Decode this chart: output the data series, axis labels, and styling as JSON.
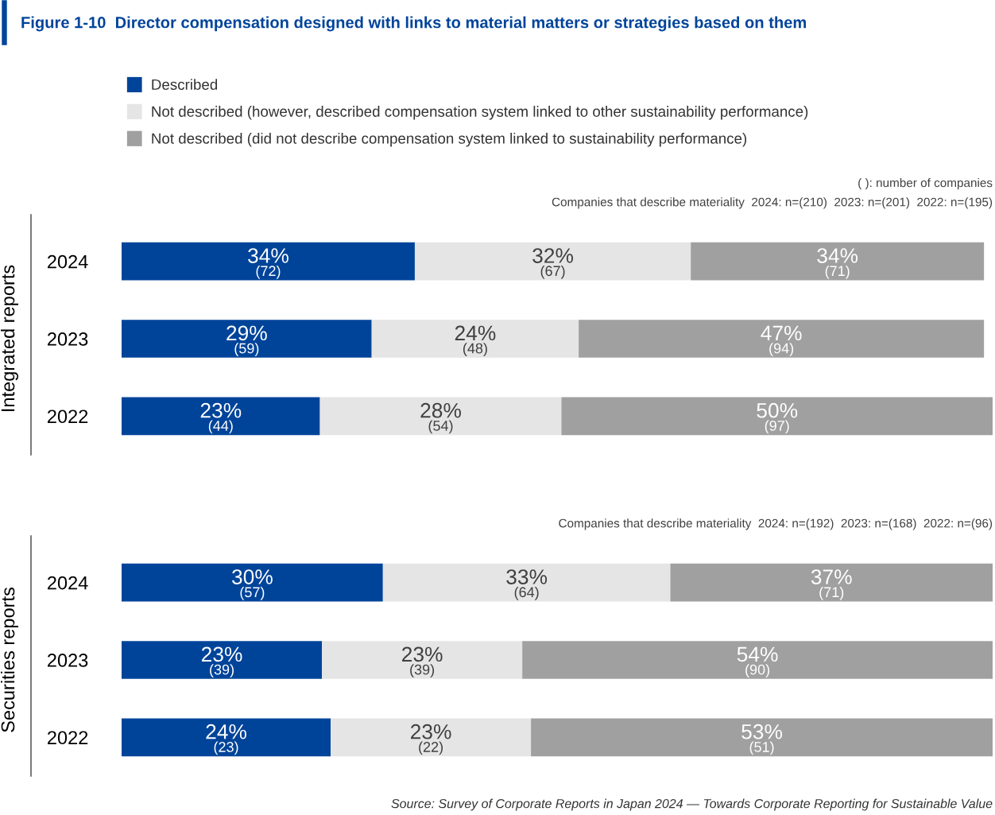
{
  "chart_data": [
    {
      "type": "bar",
      "orientation": "horizontal",
      "stacked": true,
      "title": "Figure 1-10  Director compensation designed with links to material matters or strategies based on them",
      "subtitle": "( ): number of companies\nCompanies that describe materiality  2024: n=(210)  2023: n=(201)  2022: n=(195)",
      "ylabel": "Integrated reports",
      "categories": [
        "2024",
        "2023",
        "2022"
      ],
      "legend": "top",
      "grid": false,
      "tick_labels": "y",
      "series": [
        {
          "name": "Described",
          "color": "#00449a",
          "values": [
            34,
            29,
            23
          ],
          "value_labels": [
            "34%\n(72)",
            "29%\n(59)",
            "23%\n(44)"
          ]
        },
        {
          "name": "Not described (however, described compensation system linked to other sustainability performance)",
          "color": "#e5e5e5",
          "values": [
            32,
            24,
            28
          ],
          "value_labels": [
            "32%\n(67)",
            "24%\n(48)",
            "28%\n(54)"
          ]
        },
        {
          "name": "Not described (did not describe compensation system linked to sustainability performance)",
          "color": "#a0a0a0",
          "values": [
            34,
            47,
            50
          ],
          "value_labels": [
            "34%\n(71)",
            "47%\n(94)",
            "50%\n(97)"
          ]
        }
      ]
    },
    {
      "type": "bar",
      "orientation": "horizontal",
      "stacked": true,
      "subtitle": "Companies that describe materiality  2024: n=(192)  2023: n=(168)  2022: n=(96)",
      "ylabel": "Securities reports",
      "categories": [
        "2024",
        "2023",
        "2022"
      ],
      "grid": false,
      "tick_labels": "y",
      "annotations": [
        "Source: Survey of Corporate Reports in Japan 2024 — Towards Corporate Reporting for Sustainable Value"
      ],
      "series": [
        {
          "color": "#00449a",
          "values": [
            30,
            23,
            24
          ],
          "value_labels": [
            "30%\n(57)",
            "23%\n(39)",
            "24%\n(23)"
          ]
        },
        {
          "color": "#e5e5e5",
          "values": [
            33,
            23,
            23
          ],
          "value_labels": [
            "33%\n(64)",
            "23%\n(39)",
            "23%\n(22)"
          ]
        },
        {
          "color": "#a0a0a0",
          "values": [
            37,
            54,
            53
          ],
          "value_labels": [
            "37%\n(71)",
            "54%\n(90)",
            "53%\n(51)"
          ]
        }
      ]
    }
  ]
}
